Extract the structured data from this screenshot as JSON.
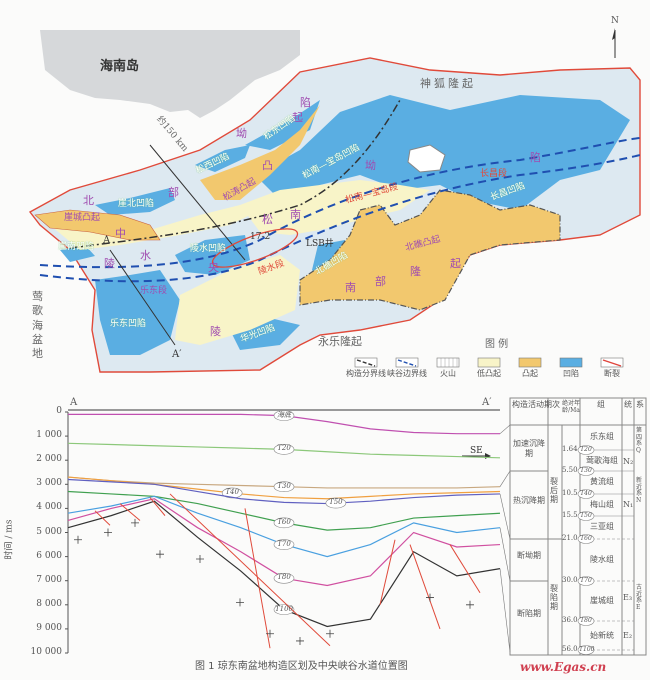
{
  "map": {
    "island": "海南岛",
    "north_arrow": "N",
    "distance": "约150 km",
    "regions": {
      "shenhu": "神狐隆起",
      "yongle": "永乐隆起",
      "yinggehai": "莺歌海盆地",
      "north_depression": [
        "北",
        "部",
        "坳",
        "陷"
      ],
      "central_depression": [
        "中",
        "央",
        "坳",
        "陷"
      ],
      "south_uplift": [
        "南",
        "部",
        "隆",
        "起"
      ],
      "songtao_low": [
        "松",
        "涛",
        "低",
        "凸",
        "起"
      ],
      "songnan_low": [
        "松",
        "南",
        "低",
        "凸",
        "起"
      ],
      "lingnan_low": [
        "陵",
        "南",
        "低",
        "凸",
        "起"
      ],
      "lingshui_low": [
        "陵",
        "水",
        "低",
        "凸",
        "起"
      ],
      "valley": [
        "峡",
        "谷"
      ]
    },
    "sags": [
      "崖北凹陷",
      "松西凹陷",
      "松东凹陷",
      "崖南凹陷",
      "陵水凹陷",
      "松南—宝岛凹陷",
      "长昌凹陷",
      "乐东凹陷",
      "北礁凹陷",
      "华光凹陷"
    ],
    "uplifts": [
      "崖城凸起",
      "松涛凸起",
      "北礁凸起"
    ],
    "segments": [
      "乐东段",
      "陵水段",
      "松南—宝岛段",
      "长昌段"
    ],
    "well": "LSB井",
    "field": "17-2",
    "profile_start": "A",
    "profile_end": "A′",
    "legend": {
      "title": "图 例",
      "items": [
        {
          "label": "构造分界线",
          "color": "#333333"
        },
        {
          "label": "峡谷边界线",
          "color": "#1f4fb0"
        },
        {
          "label": "火山",
          "color": "#555555"
        },
        {
          "label": "低凸起",
          "color": "#f8f4c8"
        },
        {
          "label": "凸起",
          "color": "#f2c86e"
        },
        {
          "label": "凹陷",
          "color": "#5aaee2"
        },
        {
          "label": "断裂",
          "color": "#e0443c"
        }
      ]
    }
  },
  "section": {
    "start": "A",
    "end": "A′",
    "direction": "SE",
    "ylabel": "时间 / ms",
    "yticks": [
      "0",
      "1 000",
      "2 000",
      "3 000",
      "4 000",
      "5 000",
      "6 000",
      "7 000",
      "8 000",
      "9 000",
      "10 000"
    ],
    "horizons": [
      {
        "label": "海底",
        "color": "#c050b0"
      },
      {
        "label": "T20",
        "color": "#8cc87a"
      },
      {
        "label": "T30",
        "color": "#c8a880"
      },
      {
        "label": "T40",
        "color": "#f0a040"
      },
      {
        "label": "T50",
        "color": "#6060c0"
      },
      {
        "label": "T60",
        "color": "#40a050"
      },
      {
        "label": "T70",
        "color": "#4aa0e0"
      },
      {
        "label": "T80",
        "color": "#d050a0"
      },
      {
        "label": "T100",
        "color": "#333333"
      }
    ]
  },
  "strat_table": {
    "headers": [
      "构造活动期次",
      "绝对年龄/Ma",
      "组",
      "统",
      "系"
    ],
    "phases": [
      "加速沉降期",
      "热沉降期",
      "断坳期",
      "断陷期"
    ],
    "stages": [
      "裂后期",
      "裂陷期"
    ],
    "ages": [
      {
        "age": "1.64",
        "horizon": "T20"
      },
      {
        "age": "5.50",
        "horizon": "T30"
      },
      {
        "age": "10.5",
        "horizon": "T40"
      },
      {
        "age": "15.5",
        "horizon": "T50"
      },
      {
        "age": "21.0",
        "horizon": "T60"
      },
      {
        "age": "30.0",
        "horizon": "T70"
      },
      {
        "age": "36.0",
        "horizon": "T80"
      },
      {
        "age": "56.0",
        "horizon": "T100"
      }
    ],
    "formations": [
      "乐东组",
      "莺歌海组",
      "黄流组",
      "梅山组",
      "三亚组",
      "陵水组",
      "崖城组",
      "始新统"
    ],
    "series": [
      "N₂",
      "N₁",
      "E₃",
      "E₂"
    ],
    "systems": [
      "第四系Q",
      "新近系N",
      "古近系E"
    ]
  },
  "caption": "图 1   琼东南盆地构造区划及中央峡谷水道位置图",
  "watermark": "www.Egas.cn"
}
